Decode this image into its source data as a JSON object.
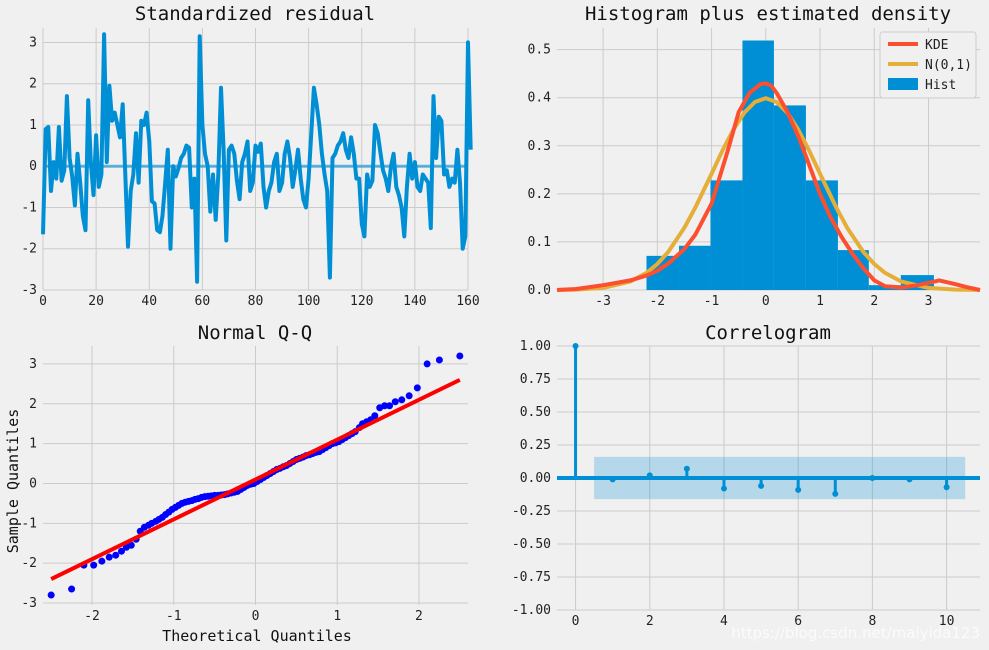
{
  "colors": {
    "background": "#f0f0f0",
    "grid": "#cbcbcb",
    "blue": "#008fd5",
    "red": "#fc4f30",
    "orange": "#e5ae38",
    "qq_points": "#0000ff",
    "qq_line": "#ff0000",
    "band": "#008fd5"
  },
  "watermark": "https://blog.csdn.net/maiyida123",
  "chart_data": [
    {
      "id": "standardized-residual",
      "type": "line",
      "title": "Standardized residual",
      "xlabel": "",
      "ylabel": "",
      "xlim": [
        0,
        160
      ],
      "ylim": [
        -3,
        3.35
      ],
      "xticks": [
        "0",
        "20",
        "40",
        "60",
        "80",
        "100",
        "120",
        "140",
        "160"
      ],
      "yticks": [
        "-3",
        "-2",
        "-1",
        "0",
        "1",
        "2",
        "3"
      ],
      "grid": true,
      "zero_line": 0,
      "values": [
        -1.65,
        0.9,
        0.95,
        -0.6,
        0.1,
        -0.3,
        0.95,
        -0.35,
        -0.1,
        1.7,
        0.2,
        -0.25,
        -0.95,
        0.3,
        -0.4,
        -1.2,
        -1.55,
        1.6,
        0.1,
        -0.7,
        0.75,
        -0.5,
        -0.2,
        3.2,
        0.1,
        1.95,
        1.1,
        1.3,
        1.0,
        0.7,
        1.5,
        -0.2,
        -1.95,
        -0.6,
        -0.2,
        0.8,
        -0.4,
        1.1,
        1.0,
        1.3,
        0.6,
        -0.85,
        -0.9,
        -1.55,
        -1.6,
        -1.2,
        -0.4,
        0.4,
        -2.0,
        0.0,
        -0.25,
        -0.05,
        0.2,
        0.3,
        0.5,
        0.45,
        -1.0,
        -0.3,
        -2.8,
        3.15,
        1.0,
        0.3,
        0.0,
        -1.1,
        -0.2,
        -1.3,
        -0.2,
        1.9,
        0.4,
        -1.8,
        0.4,
        0.5,
        0.3,
        -0.35,
        -0.8,
        0.1,
        0.3,
        0.6,
        -0.6,
        -0.4,
        0.5,
        0.35,
        0.55,
        -0.5,
        -1.0,
        -0.6,
        -0.4,
        0.1,
        0.3,
        -0.6,
        -0.4,
        0.3,
        0.6,
        0.2,
        -0.5,
        -0.1,
        0.4,
        -0.3,
        -0.8,
        -1.0,
        -0.3,
        0.8,
        1.9,
        1.5,
        1.0,
        0.3,
        -0.2,
        -0.6,
        -2.7,
        0.2,
        0.3,
        0.5,
        0.6,
        0.8,
        0.4,
        0.2,
        0.7,
        0.3,
        -0.3,
        -0.3,
        -1.4,
        -1.7,
        -0.2,
        -0.5,
        -0.35,
        1.0,
        0.8,
        0.35,
        -0.1,
        -0.3,
        -0.6,
        0.0,
        0.3,
        -0.5,
        -0.7,
        -1.0,
        -1.7,
        -0.5,
        0.3,
        -0.3,
        0.1,
        -0.5,
        -0.6,
        -0.2,
        -0.3,
        -0.4,
        -1.5,
        1.7,
        0.2,
        1.2,
        1.1,
        -0.2,
        -0.1,
        -0.5,
        -0.3,
        -0.4,
        0.4,
        -0.4,
        -2.0,
        -1.7,
        3.0,
        0.4
      ]
    },
    {
      "id": "histogram-density",
      "type": "bar",
      "title": "Histogram plus estimated density",
      "xlabel": "",
      "ylabel": "",
      "xlim": [
        -3.85,
        3.95
      ],
      "ylim": [
        0,
        0.545
      ],
      "xticks": [
        "-3",
        "-2",
        "-1",
        "0",
        "1",
        "2",
        "3"
      ],
      "yticks": [
        "0.0",
        "0.1",
        "0.2",
        "0.3",
        "0.4",
        "0.5"
      ],
      "grid": true,
      "legend": [
        "KDE",
        "N(0,1)",
        "Hist"
      ],
      "legend_position": "top-right",
      "bins": [
        -2.2,
        -1.6,
        -1.02,
        -0.43,
        0.15,
        0.74,
        1.33,
        1.9,
        2.49,
        3.1
      ],
      "hist_values": [
        0.071,
        0.092,
        0.228,
        0.519,
        0.384,
        0.228,
        0.083,
        0.01,
        0.031
      ],
      "kde": {
        "x": [
          -3.85,
          -3.5,
          -3.0,
          -2.5,
          -2.2,
          -2.0,
          -1.8,
          -1.5,
          -1.3,
          -1.0,
          -0.7,
          -0.5,
          -0.3,
          -0.1,
          0.0,
          0.1,
          0.2,
          0.4,
          0.6,
          0.8,
          1.0,
          1.2,
          1.4,
          1.6,
          1.8,
          2.0,
          2.2,
          2.5,
          2.8,
          3.0,
          3.2,
          3.5,
          3.7,
          3.95
        ],
        "y": [
          0.0,
          0.002,
          0.01,
          0.02,
          0.03,
          0.04,
          0.055,
          0.085,
          0.115,
          0.18,
          0.29,
          0.37,
          0.41,
          0.428,
          0.43,
          0.425,
          0.41,
          0.37,
          0.32,
          0.26,
          0.2,
          0.15,
          0.11,
          0.075,
          0.045,
          0.02,
          0.008,
          0.005,
          0.01,
          0.015,
          0.02,
          0.012,
          0.006,
          0.0
        ]
      },
      "normal": {
        "x": [
          -3.85,
          -3.5,
          -3.0,
          -2.5,
          -2.2,
          -2.0,
          -1.8,
          -1.5,
          -1.3,
          -1.0,
          -0.8,
          -0.6,
          -0.4,
          -0.2,
          0.0,
          0.2,
          0.4,
          0.6,
          0.8,
          1.0,
          1.3,
          1.5,
          1.8,
          2.0,
          2.2,
          2.5,
          3.0,
          3.5,
          3.95
        ],
        "y": [
          0.0002,
          0.0009,
          0.0044,
          0.0175,
          0.0355,
          0.054,
          0.079,
          0.1295,
          0.1714,
          0.242,
          0.2897,
          0.3332,
          0.3683,
          0.391,
          0.3989,
          0.391,
          0.3683,
          0.3332,
          0.2897,
          0.242,
          0.1714,
          0.1295,
          0.079,
          0.054,
          0.0355,
          0.0175,
          0.0044,
          0.0009,
          0.0002
        ]
      }
    },
    {
      "id": "normal-qq",
      "type": "scatter",
      "title": "Normal Q-Q",
      "xlabel": "Theoretical Quantiles",
      "ylabel": "Sample Quantiles",
      "xlim": [
        -2.6,
        2.6
      ],
      "ylim": [
        -3.05,
        3.45
      ],
      "xticks": [
        "-2",
        "-1",
        "0",
        "1",
        "2"
      ],
      "yticks": [
        "-3",
        "-2",
        "-1",
        "0",
        "1",
        "2",
        "3"
      ],
      "grid": true,
      "fit_line": {
        "x": [
          -2.5,
          2.5
        ],
        "y": [
          -2.4,
          2.6
        ]
      },
      "points": {
        "x": [
          -2.5,
          -2.25,
          -2.1,
          -1.98,
          -1.88,
          -1.79,
          -1.71,
          -1.64,
          -1.58,
          -1.52,
          -1.46,
          -1.41,
          -1.36,
          -1.31,
          -1.27,
          -1.22,
          -1.18,
          -1.14,
          -1.1,
          -1.06,
          -1.02,
          -0.98,
          -0.94,
          -0.9,
          -0.86,
          -0.82,
          -0.78,
          -0.74,
          -0.7,
          -0.66,
          -0.62,
          -0.58,
          -0.54,
          -0.5,
          -0.46,
          -0.42,
          -0.38,
          -0.34,
          -0.3,
          -0.26,
          -0.22,
          -0.18,
          -0.14,
          -0.1,
          -0.06,
          -0.02,
          0.02,
          0.06,
          0.1,
          0.14,
          0.18,
          0.22,
          0.26,
          0.3,
          0.34,
          0.38,
          0.42,
          0.46,
          0.5,
          0.54,
          0.58,
          0.62,
          0.66,
          0.7,
          0.74,
          0.78,
          0.82,
          0.86,
          0.9,
          0.94,
          0.98,
          1.02,
          1.06,
          1.1,
          1.14,
          1.18,
          1.22,
          1.27,
          1.31,
          1.36,
          1.41,
          1.46,
          1.52,
          1.58,
          1.64,
          1.71,
          1.79,
          1.88,
          1.98,
          2.1,
          2.25,
          2.5
        ],
        "y": [
          -2.8,
          -2.65,
          -2.05,
          -2.05,
          -1.95,
          -1.85,
          -1.8,
          -1.7,
          -1.6,
          -1.55,
          -1.4,
          -1.2,
          -1.1,
          -1.05,
          -1.0,
          -0.95,
          -0.9,
          -0.85,
          -0.78,
          -0.72,
          -0.65,
          -0.6,
          -0.55,
          -0.5,
          -0.47,
          -0.45,
          -0.43,
          -0.4,
          -0.38,
          -0.35,
          -0.33,
          -0.32,
          -0.31,
          -0.3,
          -0.3,
          -0.29,
          -0.28,
          -0.26,
          -0.24,
          -0.22,
          -0.2,
          -0.15,
          -0.1,
          -0.05,
          -0.02,
          0.0,
          0.05,
          0.1,
          0.15,
          0.2,
          0.25,
          0.3,
          0.35,
          0.38,
          0.42,
          0.45,
          0.5,
          0.55,
          0.6,
          0.63,
          0.66,
          0.7,
          0.72,
          0.75,
          0.78,
          0.8,
          0.85,
          0.9,
          0.95,
          1.0,
          1.02,
          1.05,
          1.1,
          1.15,
          1.2,
          1.25,
          1.3,
          1.4,
          1.5,
          1.55,
          1.6,
          1.7,
          1.9,
          1.95,
          1.95,
          2.05,
          2.1,
          2.2,
          2.4,
          3.0,
          3.1,
          3.2
        ]
      }
    },
    {
      "id": "correlogram",
      "type": "bar",
      "title": "Correlogram",
      "xlabel": "",
      "ylabel": "",
      "xlim": [
        -0.5,
        10.9
      ],
      "ylim": [
        -1.0,
        1.0
      ],
      "xticks": [
        "0",
        "2",
        "4",
        "6",
        "8",
        "10"
      ],
      "yticks": [
        "1.00",
        "0.75",
        "0.50",
        "0.25",
        "0.00",
        "-0.25",
        "-0.50",
        "-0.75",
        "-1.00"
      ],
      "grid": true,
      "lags": [
        0,
        1,
        2,
        3,
        4,
        5,
        6,
        7,
        8,
        9,
        10
      ],
      "acf": [
        1.0,
        -0.01,
        0.02,
        0.07,
        -0.08,
        -0.06,
        -0.09,
        -0.12,
        0.0,
        -0.01,
        -0.07
      ],
      "confidence_band": [
        -0.16,
        0.16
      ],
      "band_extent": [
        0.5,
        10.5
      ]
    }
  ]
}
